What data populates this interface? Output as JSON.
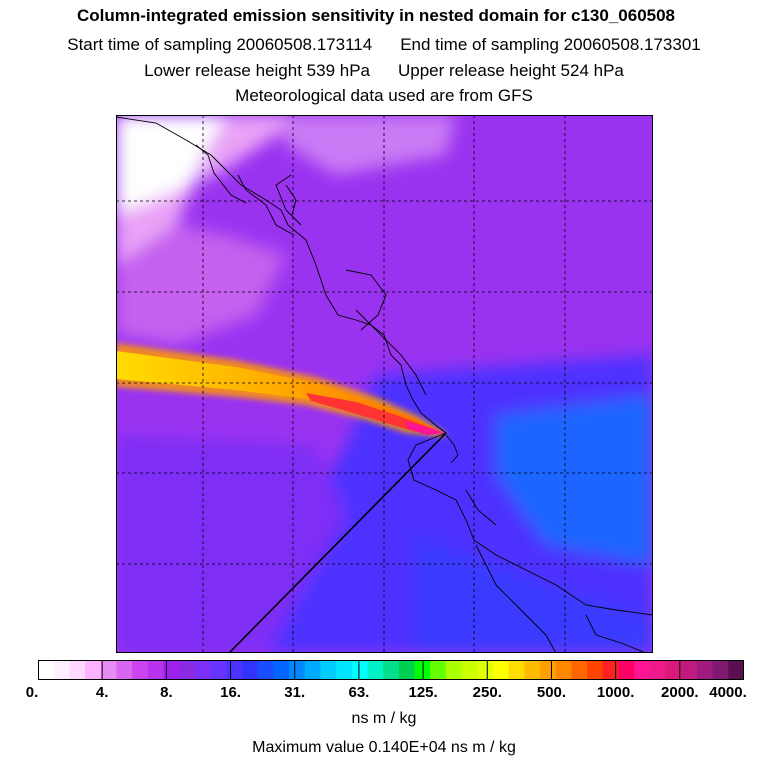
{
  "titles": {
    "main": "Column-integrated emission sensitivity in nested domain for c130_060508",
    "start_label": "Start time of sampling 20060508.173114",
    "end_label": "End time of sampling 20060508.173301",
    "lower_label": "Lower release height  539 hPa",
    "upper_label": "Upper release height  524 hPa",
    "met_label": "Meteorological data used are from GFS"
  },
  "colorbar": {
    "tick_labels": [
      "0.",
      "4.",
      "8.",
      "16.",
      "31.",
      "63.",
      "125.",
      "250.",
      "500.",
      "1000.",
      "2000.",
      "4000."
    ],
    "colors": [
      "#ffffff",
      "#fff0ff",
      "#ffd9ff",
      "#ffb3ff",
      "#e88cf5",
      "#d966f0",
      "#cc44f0",
      "#b833ee",
      "#a020f0",
      "#8a2be2",
      "#7b2ff7",
      "#6633ff",
      "#4d33ff",
      "#3333ff",
      "#1a4dff",
      "#0066ff",
      "#0088ff",
      "#00aaff",
      "#00ccff",
      "#00e5ff",
      "#00ffff",
      "#00f0c8",
      "#00e08c",
      "#00d050",
      "#00ff00",
      "#66ff00",
      "#aaff00",
      "#ccff00",
      "#e0ff00",
      "#ffff00",
      "#ffdd00",
      "#ffbb00",
      "#ffa000",
      "#ff8800",
      "#ff6600",
      "#ff4400",
      "#ff2222",
      "#ff0066",
      "#ff1493",
      "#ee1a8c",
      "#d91a7a",
      "#c01a80",
      "#a01a80",
      "#801a70",
      "#5a1050"
    ],
    "units": "ns m / kg"
  },
  "footer": {
    "max_value": "Maximum value  0.140E+04 ns m / kg"
  },
  "map_colors": {
    "background": "#9a33f0",
    "upper_left": "#ffffff",
    "light_purple": "#cc66f5",
    "blue_region": "#4d33ff",
    "light_blue": "#1a66ff",
    "plume_outer": "#ffcc00",
    "plume_core": "#ff4444",
    "plume_hot": "#ff1493"
  }
}
